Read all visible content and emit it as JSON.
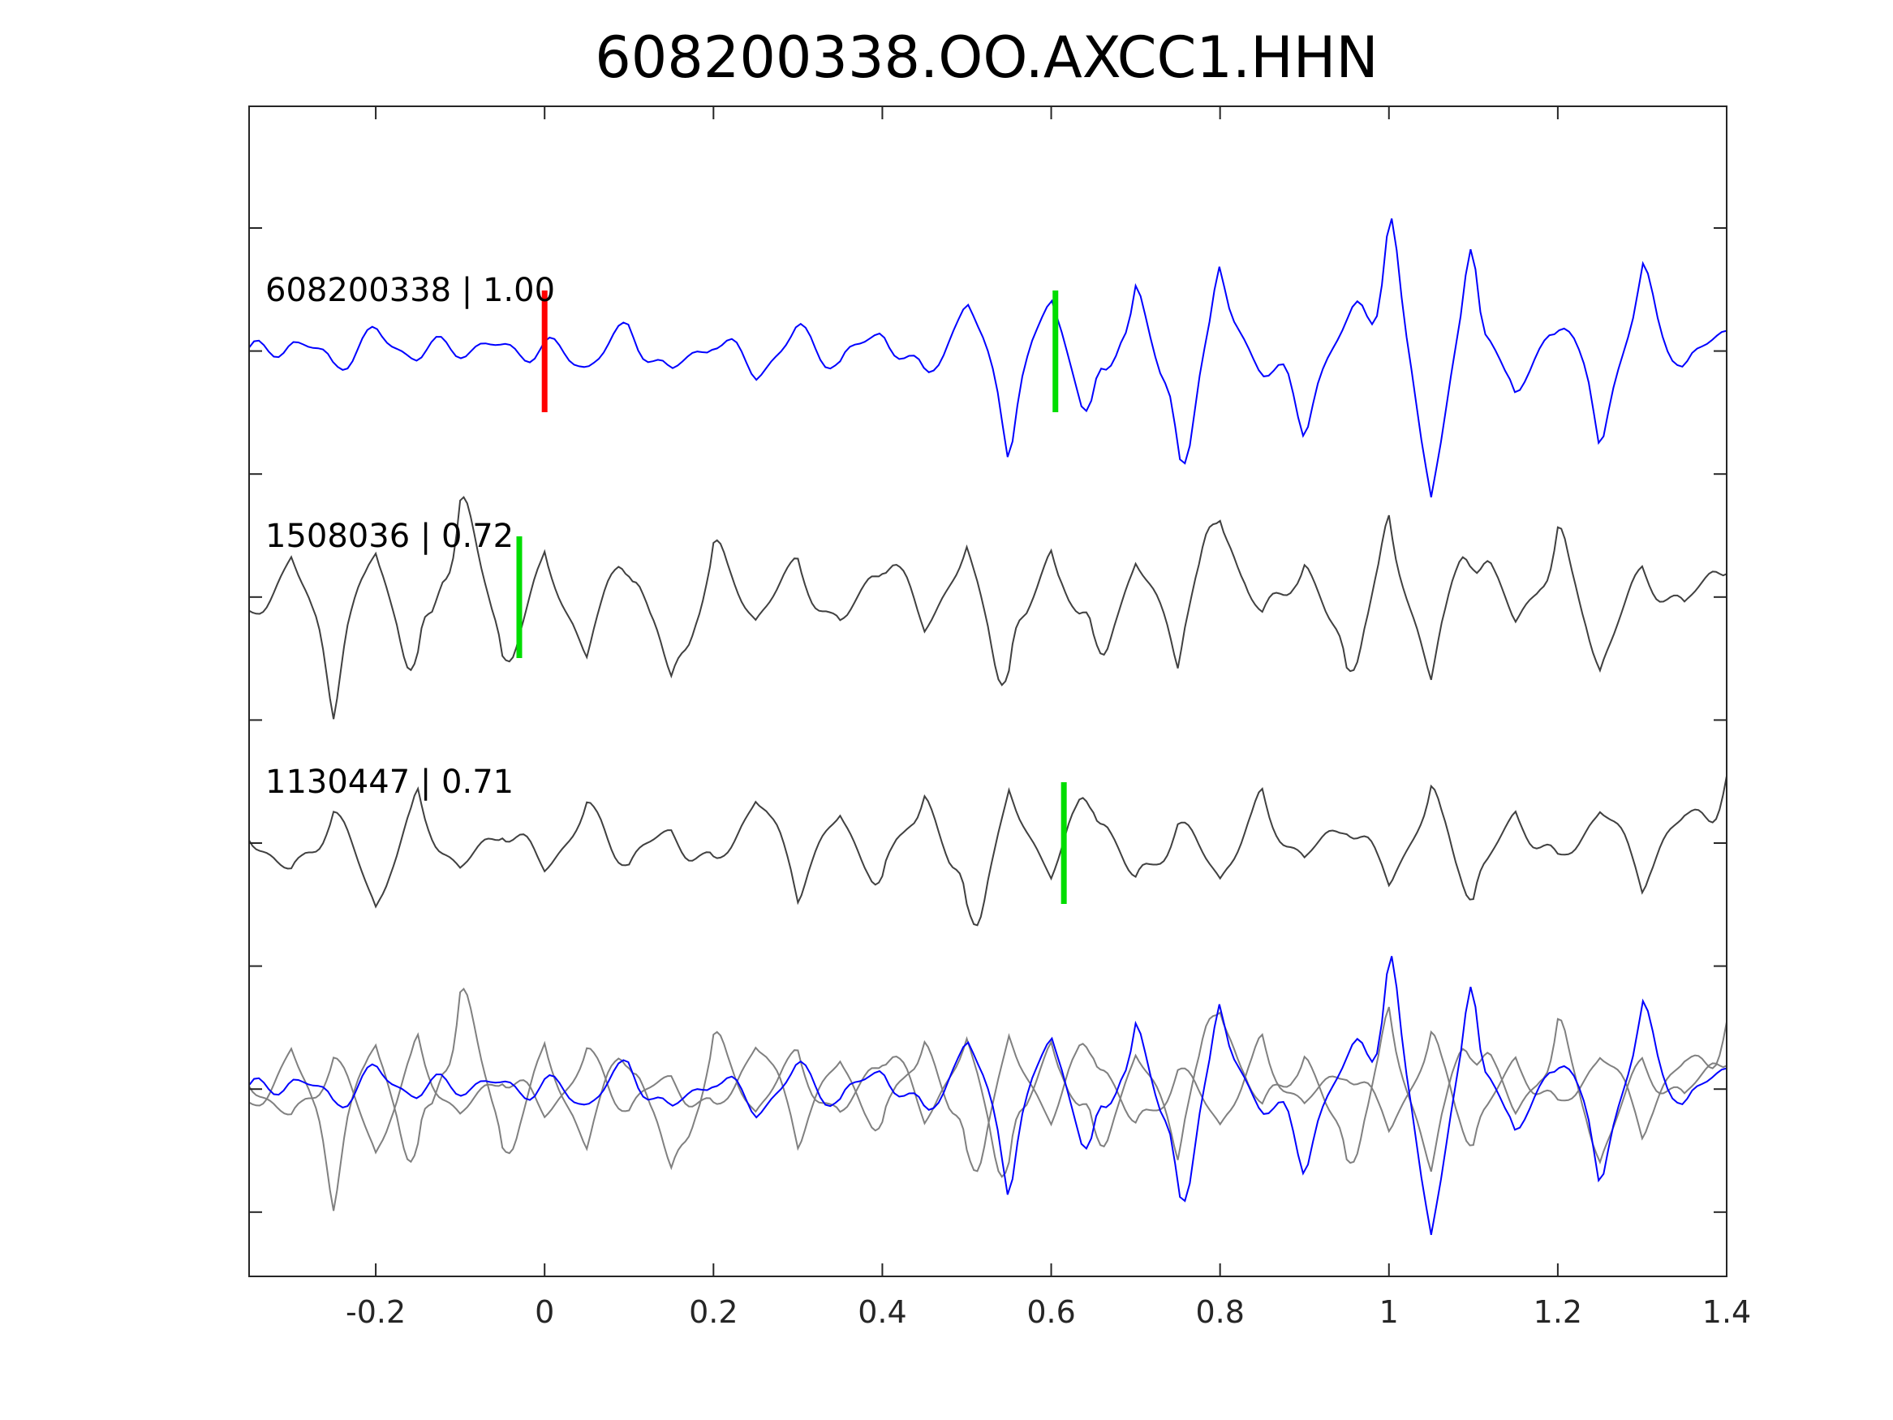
{
  "chart_data": {
    "type": "line",
    "title": "608200338.OO.AXCC1.HHN",
    "xlabel": "",
    "ylabel": "",
    "xlim": [
      -0.35,
      1.4
    ],
    "x_ticks": [
      -0.2,
      0,
      0.2,
      0.4,
      0.6,
      0.8,
      1,
      1.2,
      1.4
    ],
    "x_tick_labels": [
      "-0.2",
      "0",
      "0.2",
      "0.4",
      "0.6",
      "0.8",
      "1",
      "1.2",
      "1.4"
    ],
    "grid": false,
    "colors": {
      "reference_trace": "#0000ff",
      "match_trace": "#404040",
      "overlay_match_trace": "#808080",
      "reference_pick": "#ff0000",
      "match_pick": "#00dd00",
      "axes": "#262626"
    },
    "traces": [
      {
        "label": "608200338 | 1.00",
        "role": "reference",
        "pick_red_x": 0.0,
        "pick_green_x": 0.605,
        "t": [
          -0.35,
          -0.3,
          -0.25,
          -0.2,
          -0.15,
          -0.1,
          -0.05,
          0.0,
          0.05,
          0.1,
          0.15,
          0.2,
          0.25,
          0.3,
          0.35,
          0.4,
          0.45,
          0.5,
          0.55,
          0.6,
          0.65,
          0.7,
          0.75,
          0.8,
          0.85,
          0.9,
          0.95,
          1.0,
          1.05,
          1.1,
          1.15,
          1.2,
          1.25,
          1.3,
          1.35,
          1.4
        ],
        "amp": [
          -0.1,
          0.18,
          -0.2,
          0.25,
          -0.05,
          0.1,
          0.02,
          0.05,
          -0.2,
          0.35,
          -0.4,
          0.25,
          -0.35,
          0.3,
          -0.2,
          0.35,
          -0.5,
          0.8,
          -1.1,
          0.9,
          -1.3,
          1.2,
          -1.7,
          1.0,
          -0.3,
          -0.9,
          0.4,
          1.7,
          -2.0,
          1.4,
          -1.0,
          0.8,
          -1.2,
          1.0,
          -0.3,
          0.4
        ]
      },
      {
        "label": "1508036 | 0.72",
        "role": "match",
        "pick_green_x": -0.03,
        "t": [
          -0.35,
          -0.3,
          -0.25,
          -0.2,
          -0.15,
          -0.1,
          -0.05,
          0.0,
          0.05,
          0.1,
          0.15,
          0.2,
          0.25,
          0.3,
          0.35,
          0.4,
          0.45,
          0.5,
          0.55,
          0.6,
          0.65,
          0.7,
          0.75,
          0.8,
          0.85,
          0.9,
          0.95,
          1.0,
          1.05,
          1.1,
          1.15,
          1.2,
          1.25,
          1.3,
          1.35,
          1.4
        ],
        "amp": [
          -0.4,
          0.6,
          -1.2,
          0.8,
          -1.5,
          1.8,
          -1.0,
          0.5,
          -0.8,
          0.9,
          -1.6,
          0.7,
          -0.3,
          0.5,
          -0.6,
          0.8,
          -0.4,
          0.6,
          -1.3,
          0.9,
          -1.1,
          0.5,
          -0.7,
          1.4,
          -0.4,
          0.6,
          -1.2,
          0.9,
          -1.1,
          1.2,
          -0.5,
          0.9,
          -1.0,
          0.4,
          -0.2,
          0.8
        ]
      },
      {
        "label": "1130447 | 0.71",
        "role": "match",
        "pick_green_x": 0.615,
        "t": [
          -0.35,
          -0.3,
          -0.25,
          -0.2,
          -0.15,
          -0.1,
          -0.05,
          0.0,
          0.05,
          0.1,
          0.15,
          0.2,
          0.25,
          0.3,
          0.35,
          0.4,
          0.45,
          0.5,
          0.55,
          0.6,
          0.65,
          0.7,
          0.75,
          0.8,
          0.85,
          0.9,
          0.95,
          1.0,
          1.05,
          1.1,
          1.15,
          1.2,
          1.25,
          1.3,
          1.35,
          1.4
        ],
        "amp": [
          0.2,
          -0.6,
          0.5,
          -0.9,
          0.6,
          -0.5,
          0.3,
          -0.4,
          0.5,
          -0.3,
          0.2,
          -0.5,
          0.8,
          -0.6,
          0.4,
          -0.7,
          1.0,
          -1.4,
          0.6,
          -0.4,
          0.9,
          -0.8,
          0.3,
          -0.5,
          0.6,
          -0.3,
          0.4,
          -0.6,
          0.7,
          -0.8,
          0.5,
          -0.4,
          0.6,
          -0.5,
          0.4,
          0.9
        ]
      }
    ]
  }
}
